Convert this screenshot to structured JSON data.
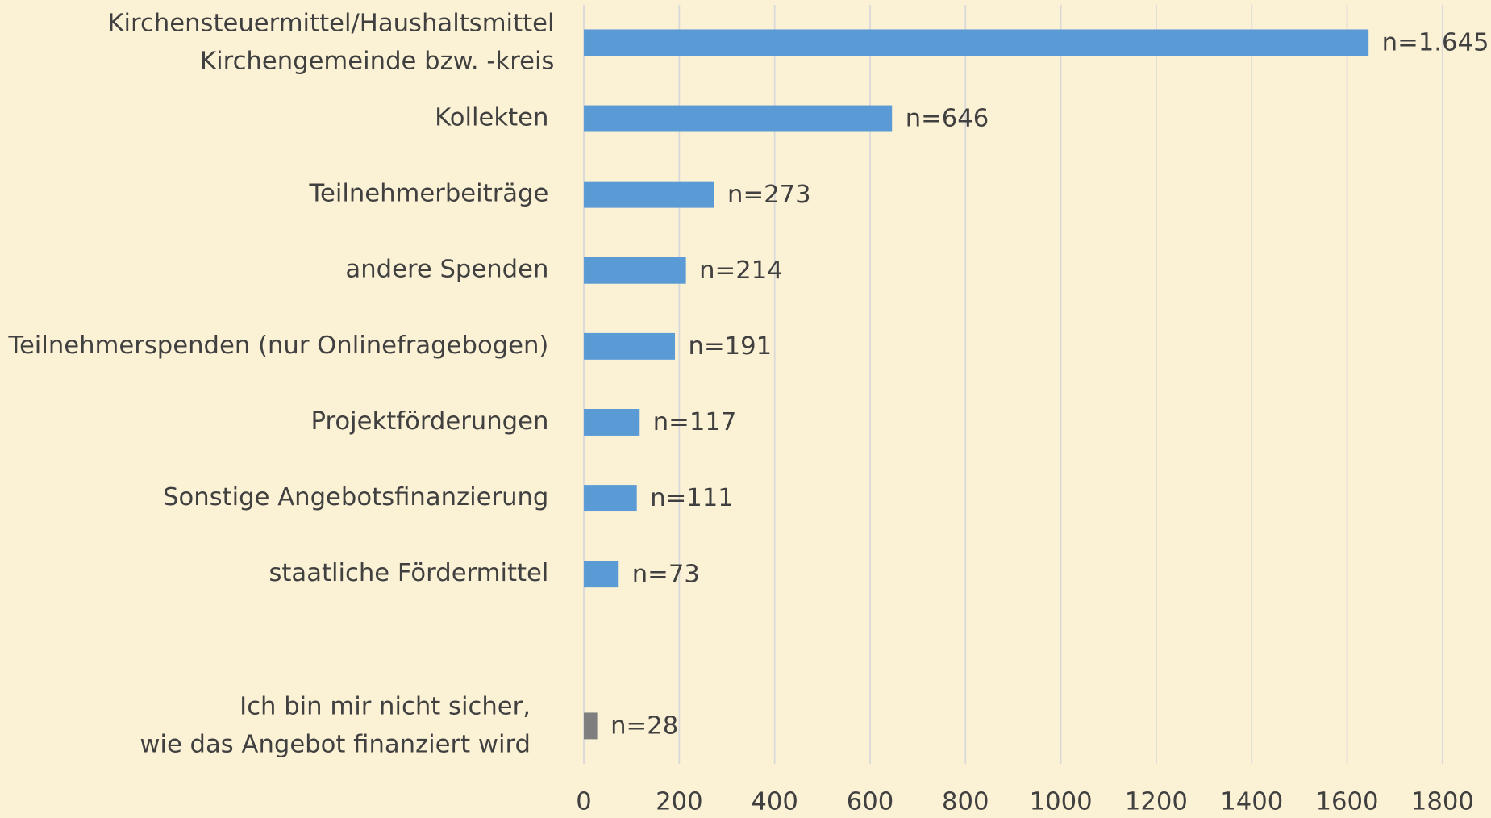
{
  "chart_data": {
    "type": "barh",
    "categories": [
      "Kirchensteuermittel/Haushaltsmittel\nKirchengemeinde bzw. -kreis",
      "Kollekten",
      "Teilnehmerbeiträge",
      "andere Spenden",
      "Teilnehmerspenden (nur Onlinefragebogen)",
      "Projektförderungen",
      "Sonstige Angebotsfinanzierung",
      "staatliche Fördermittel",
      null,
      "Ich bin mir nicht sicher,\nwie das Angebot finanziert wird"
    ],
    "values": [
      1645,
      646,
      273,
      214,
      191,
      117,
      111,
      73,
      null,
      28
    ],
    "value_labels": [
      "n=1.645",
      "n=646",
      "n=273",
      "n=214",
      "n=191",
      "n=117",
      "n=111",
      "n=73",
      null,
      "n=28"
    ],
    "colors": [
      "#5b9bd5",
      "#5b9bd5",
      "#5b9bd5",
      "#5b9bd5",
      "#5b9bd5",
      "#5b9bd5",
      "#5b9bd5",
      "#5b9bd5",
      null,
      "#7f7f7f"
    ],
    "xlim": [
      0,
      1800
    ],
    "xticks": [
      0,
      200,
      400,
      600,
      800,
      1000,
      1200,
      1400,
      1600,
      1800
    ],
    "grid": true
  }
}
